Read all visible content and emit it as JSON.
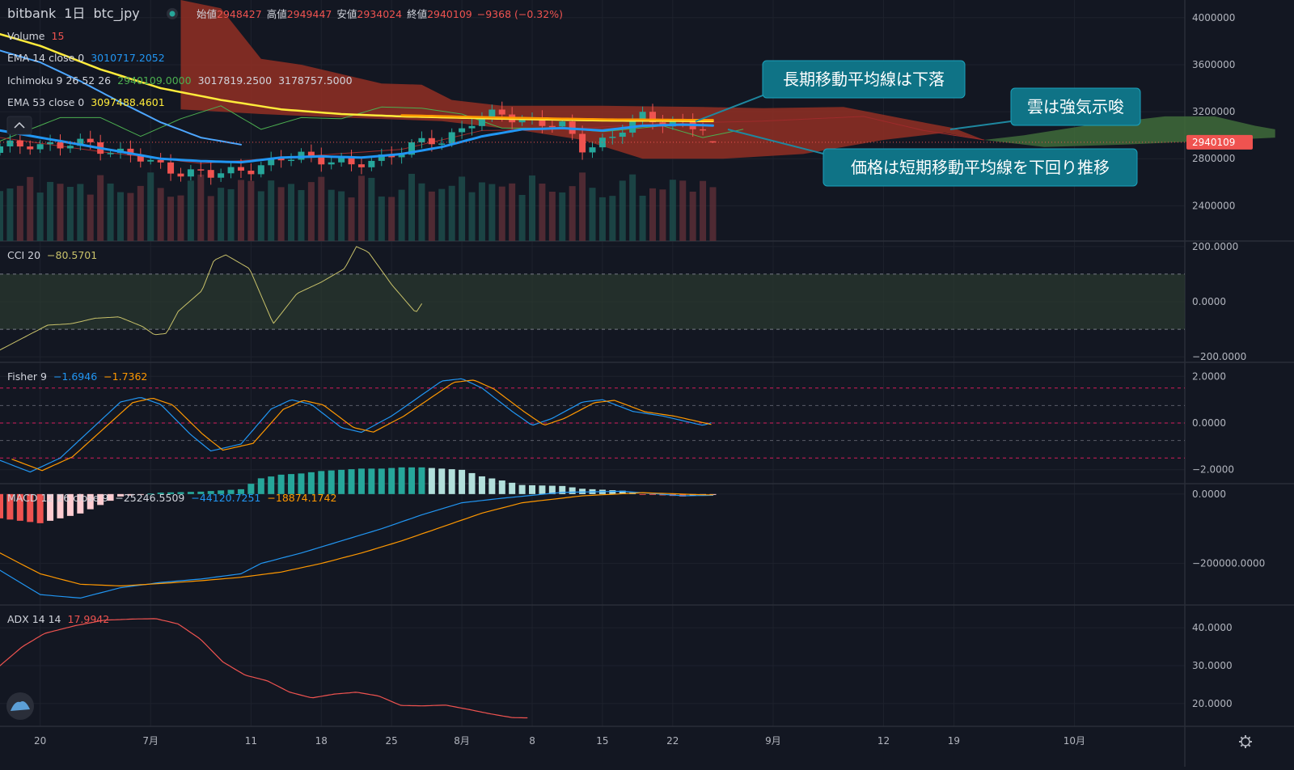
{
  "header": {
    "exchange": "bitbank",
    "interval": "1日",
    "symbol": "btc_jpy",
    "ohlc": [
      {
        "label": "始値",
        "value": "2948427"
      },
      {
        "label": "高値",
        "value": "2949447"
      },
      {
        "label": "安値",
        "value": "2934024"
      },
      {
        "label": "終値",
        "value": "2940109"
      }
    ],
    "change": "−9368 (−0.32%)"
  },
  "legend": [
    {
      "name": "Volume",
      "values": [
        "15"
      ],
      "colors": [
        "#ef5350"
      ]
    },
    {
      "name": "EMA 14 close 0",
      "values": [
        "3010717.2052"
      ],
      "colors": [
        "#2196f3"
      ]
    },
    {
      "name": "Ichimoku 9 26 52 26",
      "values": [
        "2940109.0000",
        "3017819.2500",
        "3178757.5000"
      ],
      "colors": [
        "#4caf50",
        "#d1d4dc",
        "#d1d4dc"
      ]
    },
    {
      "name": "EMA 53 close 0",
      "values": [
        "3097488.4601"
      ],
      "colors": [
        "#ffeb3b"
      ]
    }
  ],
  "colors": {
    "background": "#131722",
    "up": "#26a69a",
    "down": "#ef5350",
    "ema14": "#2196f3",
    "ema53": "#ffeb3b",
    "ema_long": "#ff9800",
    "cloud_bear": "#8b2e24",
    "cloud_bull": "#3f6b3a",
    "callout": "#0f7386",
    "cci": "#c9c26a",
    "fisher1": "#2196f3",
    "fisher2": "#ff9800",
    "macd": "#2196f3",
    "signal": "#ff9800",
    "adx": "#ef5350",
    "grid": "#1e222d",
    "text": "#d1d4dc",
    "axis_text": "#b2b5be"
  },
  "callouts": [
    {
      "text": "長期移動平均線は下落"
    },
    {
      "text": "雲は強気示唆"
    },
    {
      "text": "価格は短期移動平均線を下回り推移"
    }
  ],
  "current_price": "2940109",
  "panes": {
    "cci": {
      "name": "CCI 20",
      "values": [
        "−80.5701"
      ],
      "colors": [
        "#c9c26a"
      ],
      "ticks": [
        "200.0000",
        "0.0000",
        "−200.0000"
      ]
    },
    "fisher": {
      "name": "Fisher 9",
      "values": [
        "−1.6946",
        "−1.7362"
      ],
      "colors": [
        "#2196f3",
        "#ff9800"
      ],
      "ticks": [
        "2.0000",
        "0.0000",
        "−2.0000"
      ]
    },
    "macd": {
      "name": "MACD 12 26 close 9",
      "values": [
        "−25246.5509",
        "−44120.7251",
        "−18874.1742"
      ],
      "colors": [
        "#d1d4dc",
        "#2196f3",
        "#ff9800"
      ],
      "ticks": [
        "0.0000",
        "−200000.0000"
      ]
    },
    "adx": {
      "name": "ADX 14 14",
      "values": [
        "17.9942"
      ],
      "colors": [
        "#ef5350"
      ],
      "ticks": [
        "40.0000",
        "30.0000",
        "20.0000"
      ]
    }
  },
  "main_ticks": [
    "4000000",
    "3600000",
    "3200000",
    "2800000",
    "2400000"
  ],
  "x_ticks": [
    "20",
    "7月",
    "11",
    "18",
    "25",
    "8月",
    "8",
    "15",
    "22",
    "9月",
    "12",
    "19",
    "10月"
  ],
  "chart_data": {
    "type": "candlestick",
    "x_range": [
      "2020-06-16",
      "2020-10-12"
    ],
    "y_range": [
      2100000,
      4150000
    ],
    "y_ticks": [
      2400000,
      2800000,
      3200000,
      3600000,
      4000000
    ],
    "current_price": 2940109,
    "candles_ohlc_sample": [
      {
        "x": "2020-06-16",
        "o": 2880000,
        "h": 2950000,
        "l": 2820000,
        "c": 2860000
      },
      {
        "x": "2020-07-07",
        "o": 2620000,
        "h": 2660000,
        "l": 2560000,
        "c": 2600000
      },
      {
        "x": "2020-07-21",
        "o": 3000000,
        "h": 3120000,
        "l": 2980000,
        "c": 3080000
      },
      {
        "x": "2020-08-02",
        "o": 3110000,
        "h": 3210000,
        "l": 3000000,
        "c": 3040000
      },
      {
        "x": "2020-08-16",
        "o": 3110000,
        "h": 3180000,
        "l": 3080000,
        "c": 3130000
      },
      {
        "x": "2020-08-26",
        "o": 2940000,
        "h": 2950000,
        "l": 2930000,
        "c": 2940000
      }
    ],
    "ema14_approx": [
      {
        "x": "2020-06-16",
        "y": 3040000
      },
      {
        "x": "2020-07-05",
        "y": 2780000
      },
      {
        "x": "2020-07-26",
        "y": 3070000
      },
      {
        "x": "2020-08-16",
        "y": 3110000
      },
      {
        "x": "2020-08-26",
        "y": 3010000
      }
    ],
    "ema53_approx": [
      {
        "x": "2020-06-16",
        "y": 3860000
      },
      {
        "x": "2020-07-10",
        "y": 3320000
      },
      {
        "x": "2020-07-24",
        "y": 3170000
      },
      {
        "x": "2020-08-26",
        "y": 3097000
      }
    ],
    "cci_range": [
      -220,
      220
    ],
    "fisher_range": [
      -2.6,
      2.6
    ],
    "macd_range": [
      -320000,
      30000
    ],
    "adx_range": [
      14,
      46
    ]
  }
}
